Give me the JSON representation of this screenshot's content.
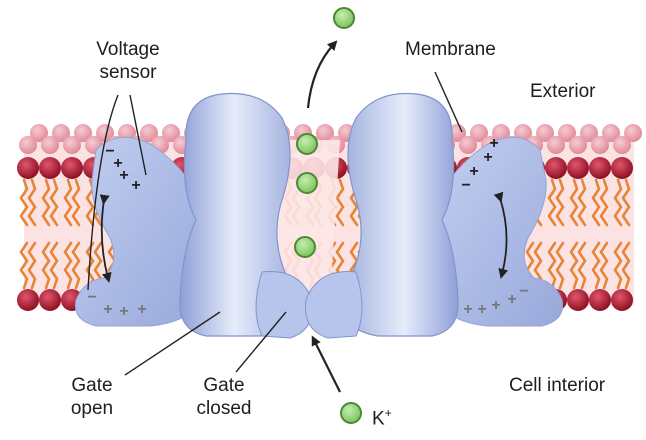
{
  "labels": {
    "voltage_sensor": [
      "Voltage",
      "sensor"
    ],
    "membrane": "Membrane",
    "exterior": "Exterior",
    "gate_open": [
      "Gate",
      "open"
    ],
    "gate_closed": [
      "Gate",
      "closed"
    ],
    "cell_interior": "Cell interior",
    "ion": "K",
    "ion_charge": "+"
  },
  "charges": {
    "plus": "+",
    "minus": "−"
  },
  "colors": {
    "protein": "#aebde6",
    "protein_dark": "#7f93cf",
    "lipid_head": "#b41a32",
    "lipid_head_pale": "#e79aa7",
    "lipid_tail": "#e88436",
    "membrane_bg": "#fbe3e4",
    "ion_fill": "#8fd173",
    "ion_edge": "#4a8a35"
  }
}
